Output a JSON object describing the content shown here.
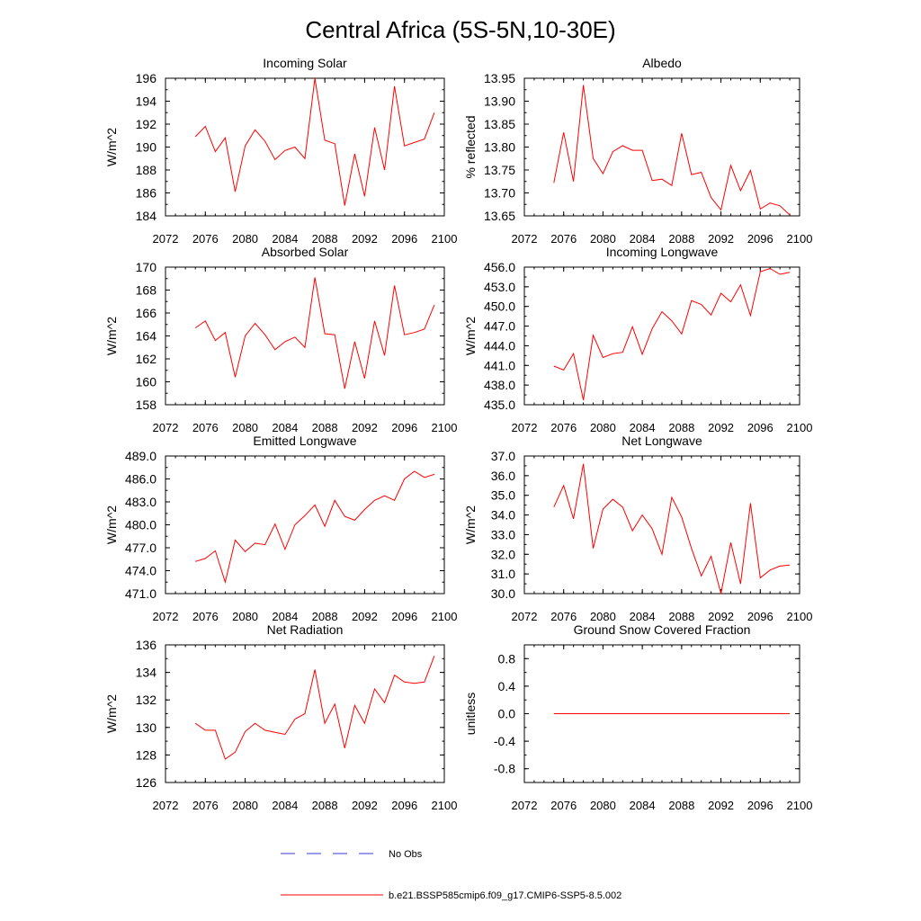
{
  "title": "Central Africa (5S-5N,10-30E)",
  "colors": {
    "model": "#ff0000",
    "obs": "#3a3ad6",
    "axis": "#000000"
  },
  "legend": {
    "obs_label": "No Obs",
    "model_label": "b.e21.BSSP585cmip6.f09_g17.CMIP6-SSP5-8.5.002"
  },
  "chart_data": [
    {
      "type": "line",
      "title": "Incoming Solar",
      "ylabel": "W/m^2",
      "xlim": [
        2072,
        2100
      ],
      "ylim": [
        184,
        196
      ],
      "xticks": [
        2072,
        2076,
        2080,
        2084,
        2088,
        2092,
        2096,
        2100
      ],
      "yticks": [
        "184",
        "186",
        "188",
        "190",
        "192",
        "194",
        "196"
      ],
      "x": [
        2075,
        2076,
        2077,
        2078,
        2079,
        2080,
        2081,
        2082,
        2083,
        2084,
        2085,
        2086,
        2087,
        2088,
        2089,
        2090,
        2091,
        2092,
        2093,
        2094,
        2095,
        2096,
        2097,
        2098,
        2099
      ],
      "series": [
        {
          "values": [
            190.9,
            191.8,
            189.6,
            190.8,
            186.1,
            190.1,
            191.5,
            190.5,
            188.9,
            189.7,
            190.0,
            189.0,
            196.0,
            190.6,
            190.3,
            184.9,
            189.4,
            185.7,
            191.7,
            188.0,
            195.3,
            190.1,
            190.4,
            190.7,
            193.0
          ]
        }
      ]
    },
    {
      "type": "line",
      "title": "Albedo",
      "ylabel": "% reflected",
      "xlim": [
        2072,
        2100
      ],
      "ylim": [
        13.65,
        13.95
      ],
      "xticks": [
        2072,
        2076,
        2080,
        2084,
        2088,
        2092,
        2096,
        2100
      ],
      "yticks": [
        "13.65",
        "13.70",
        "13.75",
        "13.80",
        "13.85",
        "13.90",
        "13.95"
      ],
      "x": [
        2075,
        2076,
        2077,
        2078,
        2079,
        2080,
        2081,
        2082,
        2083,
        2084,
        2085,
        2086,
        2087,
        2088,
        2089,
        2090,
        2091,
        2092,
        2093,
        2094,
        2095,
        2096,
        2097,
        2098,
        2099
      ],
      "series": [
        {
          "values": [
            13.722,
            13.832,
            13.725,
            13.935,
            13.775,
            13.742,
            13.79,
            13.803,
            13.793,
            13.793,
            13.727,
            13.73,
            13.716,
            13.83,
            13.74,
            13.745,
            13.69,
            13.663,
            13.76,
            13.705,
            13.749,
            13.665,
            13.678,
            13.672,
            13.652
          ]
        }
      ]
    },
    {
      "type": "line",
      "title": "Absorbed Solar",
      "ylabel": "W/m^2",
      "xlim": [
        2072,
        2100
      ],
      "ylim": [
        158,
        170
      ],
      "xticks": [
        2072,
        2076,
        2080,
        2084,
        2088,
        2092,
        2096,
        2100
      ],
      "yticks": [
        "158",
        "160",
        "162",
        "164",
        "166",
        "168",
        "170"
      ],
      "x": [
        2075,
        2076,
        2077,
        2078,
        2079,
        2080,
        2081,
        2082,
        2083,
        2084,
        2085,
        2086,
        2087,
        2088,
        2089,
        2090,
        2091,
        2092,
        2093,
        2094,
        2095,
        2096,
        2097,
        2098,
        2099
      ],
      "series": [
        {
          "values": [
            164.7,
            165.3,
            163.6,
            164.3,
            160.4,
            164.0,
            165.1,
            164.1,
            162.8,
            163.5,
            163.9,
            163.0,
            169.1,
            164.2,
            164.1,
            159.4,
            163.5,
            160.3,
            165.3,
            162.3,
            168.4,
            164.1,
            164.3,
            164.6,
            166.7
          ]
        }
      ]
    },
    {
      "type": "line",
      "title": "Incoming Longwave",
      "ylabel": "W/m^2",
      "xlim": [
        2072,
        2100
      ],
      "ylim": [
        435,
        456
      ],
      "xticks": [
        2072,
        2076,
        2080,
        2084,
        2088,
        2092,
        2096,
        2100
      ],
      "yticks": [
        "435.0",
        "438.0",
        "441.0",
        "444.0",
        "447.0",
        "450.0",
        "453.0",
        "456.0"
      ],
      "x": [
        2075,
        2076,
        2077,
        2078,
        2079,
        2080,
        2081,
        2082,
        2083,
        2084,
        2085,
        2086,
        2087,
        2088,
        2089,
        2090,
        2091,
        2092,
        2093,
        2094,
        2095,
        2096,
        2097,
        2098,
        2099
      ],
      "series": [
        {
          "values": [
            440.9,
            440.3,
            442.8,
            435.7,
            445.6,
            442.2,
            442.8,
            443.0,
            446.9,
            442.7,
            446.6,
            449.2,
            447.8,
            445.8,
            450.9,
            450.3,
            448.7,
            452.0,
            450.7,
            453.3,
            448.6,
            455.3,
            455.8,
            454.9,
            455.2
          ]
        }
      ]
    },
    {
      "type": "line",
      "title": "Emitted Longwave",
      "ylabel": "W/m^2",
      "xlim": [
        2072,
        2100
      ],
      "ylim": [
        471,
        489
      ],
      "xticks": [
        2072,
        2076,
        2080,
        2084,
        2088,
        2092,
        2096,
        2100
      ],
      "yticks": [
        "471.0",
        "474.0",
        "477.0",
        "480.0",
        "483.0",
        "486.0",
        "489.0"
      ],
      "x": [
        2075,
        2076,
        2077,
        2078,
        2079,
        2080,
        2081,
        2082,
        2083,
        2084,
        2085,
        2086,
        2087,
        2088,
        2089,
        2090,
        2091,
        2092,
        2093,
        2094,
        2095,
        2096,
        2097,
        2098,
        2099
      ],
      "series": [
        {
          "values": [
            475.2,
            475.6,
            476.6,
            472.5,
            478.0,
            476.5,
            477.6,
            477.4,
            480.1,
            476.8,
            480.0,
            481.2,
            482.6,
            479.8,
            483.2,
            481.1,
            480.6,
            482.0,
            483.2,
            483.8,
            483.2,
            486.0,
            487.0,
            486.2,
            486.6
          ]
        }
      ]
    },
    {
      "type": "line",
      "title": "Net Longwave",
      "ylabel": "W/m^2",
      "xlim": [
        2072,
        2100
      ],
      "ylim": [
        30,
        37
      ],
      "xticks": [
        2072,
        2076,
        2080,
        2084,
        2088,
        2092,
        2096,
        2100
      ],
      "yticks": [
        "30.0",
        "31.0",
        "32.0",
        "33.0",
        "34.0",
        "35.0",
        "36.0",
        "37.0"
      ],
      "x": [
        2075,
        2076,
        2077,
        2078,
        2079,
        2080,
        2081,
        2082,
        2083,
        2084,
        2085,
        2086,
        2087,
        2088,
        2089,
        2090,
        2091,
        2092,
        2093,
        2094,
        2095,
        2096,
        2097,
        2098,
        2099
      ],
      "series": [
        {
          "values": [
            34.4,
            35.5,
            33.8,
            36.6,
            32.3,
            34.3,
            34.8,
            34.4,
            33.2,
            34.0,
            33.3,
            32.0,
            34.9,
            33.9,
            32.3,
            30.9,
            31.9,
            30.0,
            32.6,
            30.5,
            34.6,
            30.8,
            31.2,
            31.4,
            31.45
          ]
        }
      ]
    },
    {
      "type": "line",
      "title": "Net Radiation",
      "ylabel": "W/m^2",
      "xlim": [
        2072,
        2100
      ],
      "ylim": [
        126,
        136
      ],
      "xticks": [
        2072,
        2076,
        2080,
        2084,
        2088,
        2092,
        2096,
        2100
      ],
      "yticks": [
        "126",
        "128",
        "130",
        "132",
        "134",
        "136"
      ],
      "x": [
        2075,
        2076,
        2077,
        2078,
        2079,
        2080,
        2081,
        2082,
        2083,
        2084,
        2085,
        2086,
        2087,
        2088,
        2089,
        2090,
        2091,
        2092,
        2093,
        2094,
        2095,
        2096,
        2097,
        2098,
        2099
      ],
      "series": [
        {
          "values": [
            130.3,
            129.8,
            129.8,
            127.7,
            128.2,
            129.7,
            130.3,
            129.8,
            129.65,
            129.5,
            130.6,
            131.0,
            134.2,
            130.3,
            131.7,
            128.5,
            131.6,
            130.3,
            132.8,
            131.8,
            133.8,
            133.3,
            133.2,
            133.3,
            135.2
          ]
        }
      ]
    },
    {
      "type": "line",
      "title": "Ground Snow Covered Fraction",
      "ylabel": "unitless",
      "xlim": [
        2072,
        2100
      ],
      "ylim": [
        -1,
        1
      ],
      "xticks": [
        2072,
        2076,
        2080,
        2084,
        2088,
        2092,
        2096,
        2100
      ],
      "yticks": [
        "-0.8",
        "-0.4",
        "0.0",
        "0.4",
        "0.8"
      ],
      "x": [
        2075,
        2076,
        2077,
        2078,
        2079,
        2080,
        2081,
        2082,
        2083,
        2084,
        2085,
        2086,
        2087,
        2088,
        2089,
        2090,
        2091,
        2092,
        2093,
        2094,
        2095,
        2096,
        2097,
        2098,
        2099
      ],
      "series": [
        {
          "values": [
            0,
            0,
            0,
            0,
            0,
            0,
            0,
            0,
            0,
            0,
            0,
            0,
            0,
            0,
            0,
            0,
            0,
            0,
            0,
            0,
            0,
            0,
            0,
            0,
            0
          ]
        }
      ]
    }
  ]
}
